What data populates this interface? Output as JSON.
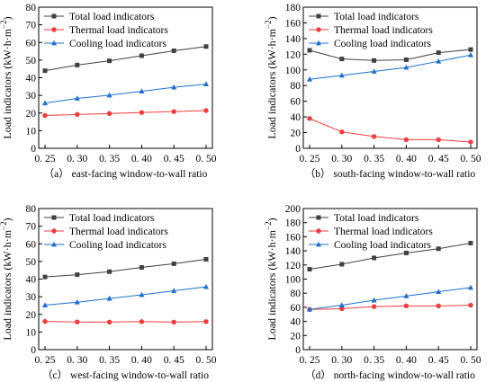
{
  "chart_data": [
    {
      "type": "line",
      "caption": "（a）  east-facing window-to-wall ratio",
      "ylabel": "Load indicators (kW·h·m",
      "ylabel_sup": "−2",
      "ylabel_close": ")",
      "xlim": [
        0.25,
        0.5
      ],
      "ylim": [
        0,
        80
      ],
      "x": [
        0.25,
        0.3,
        0.35,
        0.4,
        0.45,
        0.5
      ],
      "x_tick_labels": [
        "0. 25",
        "0. 30",
        "0. 35",
        "0. 40",
        "0. 45",
        "0. 50"
      ],
      "y_ticks": [
        0,
        10,
        20,
        30,
        40,
        50,
        60,
        70,
        80
      ],
      "grid": false,
      "legend_position": "top-left",
      "series": [
        {
          "name": "Total load indicators",
          "color": "#404040",
          "marker": "square",
          "values": [
            44.0,
            47.2,
            49.6,
            52.5,
            55.3,
            57.7
          ]
        },
        {
          "name": "Thermal load indicators",
          "color": "#f03c3c",
          "marker": "circle",
          "values": [
            18.6,
            19.2,
            19.7,
            20.3,
            20.8,
            21.4
          ]
        },
        {
          "name": "Cooling load indicators",
          "color": "#1f6fd1",
          "marker": "triangle",
          "values": [
            25.6,
            28.3,
            30.1,
            32.3,
            34.6,
            36.4
          ]
        }
      ]
    },
    {
      "type": "line",
      "caption": "（b）  south-facing window-to-wall ratio",
      "ylabel": "Load indicators (kW·h·m",
      "ylabel_sup": "−2",
      "ylabel_close": ")",
      "xlim": [
        0.25,
        0.5
      ],
      "ylim": [
        0,
        180
      ],
      "x": [
        0.25,
        0.3,
        0.35,
        0.4,
        0.45,
        0.5
      ],
      "x_tick_labels": [
        "0. 25",
        "0. 30",
        "0. 35",
        "0. 40",
        "0. 45",
        "0. 50"
      ],
      "y_ticks": [
        0,
        20,
        40,
        60,
        80,
        100,
        120,
        140,
        160,
        180
      ],
      "grid": false,
      "legend_position": "top",
      "series": [
        {
          "name": "Total load indicators",
          "color": "#404040",
          "marker": "square",
          "values": [
            125,
            114,
            112,
            113,
            122,
            126
          ]
        },
        {
          "name": "Thermal load indicators",
          "color": "#f03c3c",
          "marker": "circle",
          "values": [
            38,
            21,
            15,
            11,
            11,
            8
          ]
        },
        {
          "name": "Cooling load indicators",
          "color": "#1f6fd1",
          "marker": "triangle",
          "values": [
            88,
            93,
            98,
            103,
            111,
            119
          ]
        }
      ]
    },
    {
      "type": "line",
      "caption": "（c）  west-facing window-to-wall ratio",
      "ylabel": "Load indicators (kW·h·m",
      "ylabel_sup": "−2",
      "ylabel_close": ")",
      "xlim": [
        0.25,
        0.5
      ],
      "ylim": [
        0,
        80
      ],
      "x": [
        0.25,
        0.3,
        0.35,
        0.4,
        0.45,
        0.5
      ],
      "x_tick_labels": [
        "0. 25",
        "0. 30",
        "0. 35",
        "0. 40",
        "0. 45",
        "0. 50"
      ],
      "y_ticks": [
        0,
        10,
        20,
        30,
        40,
        50,
        60,
        70,
        80
      ],
      "grid": false,
      "legend_position": "top-left",
      "series": [
        {
          "name": "Total load indicators",
          "color": "#404040",
          "marker": "square",
          "values": [
            41.2,
            42.5,
            44.2,
            46.6,
            48.7,
            51.2
          ]
        },
        {
          "name": "Thermal load indicators",
          "color": "#f03c3c",
          "marker": "circle",
          "values": [
            16.0,
            15.7,
            15.6,
            15.9,
            15.6,
            15.9
          ]
        },
        {
          "name": "Cooling load indicators",
          "color": "#1f6fd1",
          "marker": "triangle",
          "values": [
            25.2,
            26.9,
            29.0,
            31.1,
            33.4,
            35.6
          ]
        }
      ]
    },
    {
      "type": "line",
      "caption": "（d）  north-facing window-to-wall ratio",
      "ylabel": "Load indicators (kW·h·m",
      "ylabel_sup": "−2",
      "ylabel_close": ")",
      "xlim": [
        0.25,
        0.5
      ],
      "ylim": [
        0,
        200
      ],
      "x": [
        0.25,
        0.3,
        0.35,
        0.4,
        0.45,
        0.5
      ],
      "x_tick_labels": [
        "0. 25",
        "0. 30",
        "0. 35",
        "0. 40",
        "0. 45",
        "0. 50"
      ],
      "y_ticks": [
        0,
        20,
        40,
        60,
        80,
        100,
        120,
        140,
        160,
        180,
        200
      ],
      "grid": false,
      "legend_position": "top",
      "series": [
        {
          "name": "Total load indicators",
          "color": "#404040",
          "marker": "square",
          "values": [
            114,
            121,
            130,
            137,
            143,
            151
          ]
        },
        {
          "name": "Thermal load indicators",
          "color": "#f03c3c",
          "marker": "circle",
          "values": [
            57,
            58,
            61,
            62,
            62,
            63
          ]
        },
        {
          "name": "Cooling load indicators",
          "color": "#1f6fd1",
          "marker": "triangle",
          "values": [
            57,
            63,
            70,
            76,
            82,
            88
          ]
        }
      ]
    }
  ]
}
